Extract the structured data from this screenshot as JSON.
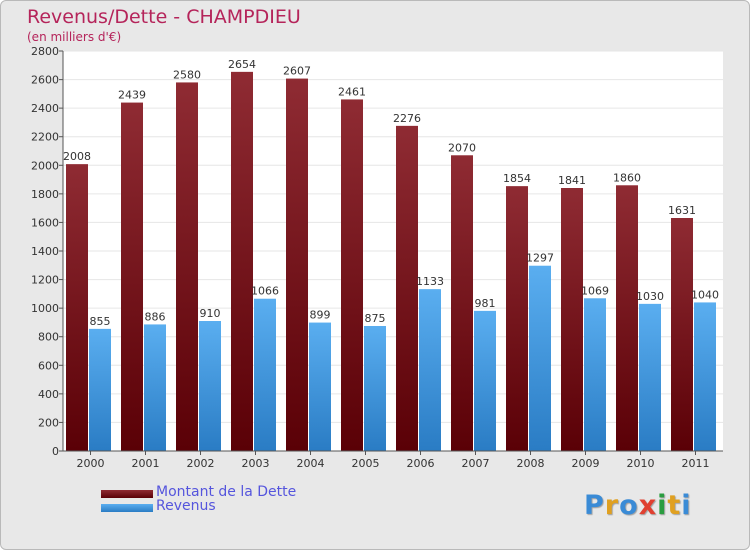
{
  "title": "Revenus/Dette - CHAMPDIEU",
  "subtitle": "(en milliers d'€)",
  "logo": {
    "text": "Proxiti",
    "colors": [
      "#3a8bd6",
      "#e0a020",
      "#3a8bd6",
      "#e04030",
      "#2a9d40",
      "#e0a020",
      "#3a8bd6"
    ]
  },
  "colors": {
    "dette": "#6f1218",
    "revenus": "#3f97e0",
    "title": "#b5245a",
    "legend_text": "#5555dd"
  },
  "chart_data": {
    "type": "bar",
    "title": "Revenus/Dette - CHAMPDIEU",
    "subtitle": "(en milliers d'€)",
    "categories": [
      "2000",
      "2001",
      "2002",
      "2003",
      "2004",
      "2005",
      "2006",
      "2007",
      "2008",
      "2009",
      "2010",
      "2011"
    ],
    "series": [
      {
        "name": "Montant de la Dette",
        "values": [
          2008,
          2439,
          2580,
          2654,
          2607,
          2461,
          2276,
          2070,
          1854,
          1841,
          1860,
          1631
        ]
      },
      {
        "name": "Revenus",
        "values": [
          855,
          886,
          910,
          1066,
          899,
          875,
          1133,
          981,
          1297,
          1069,
          1030,
          1040
        ]
      }
    ],
    "ylim": [
      0,
      2800
    ],
    "yticks": [
      0,
      200,
      400,
      600,
      800,
      1000,
      1200,
      1400,
      1600,
      1800,
      2000,
      2200,
      2400,
      2600,
      2800
    ],
    "grid": true,
    "legend": "bottom-left"
  }
}
